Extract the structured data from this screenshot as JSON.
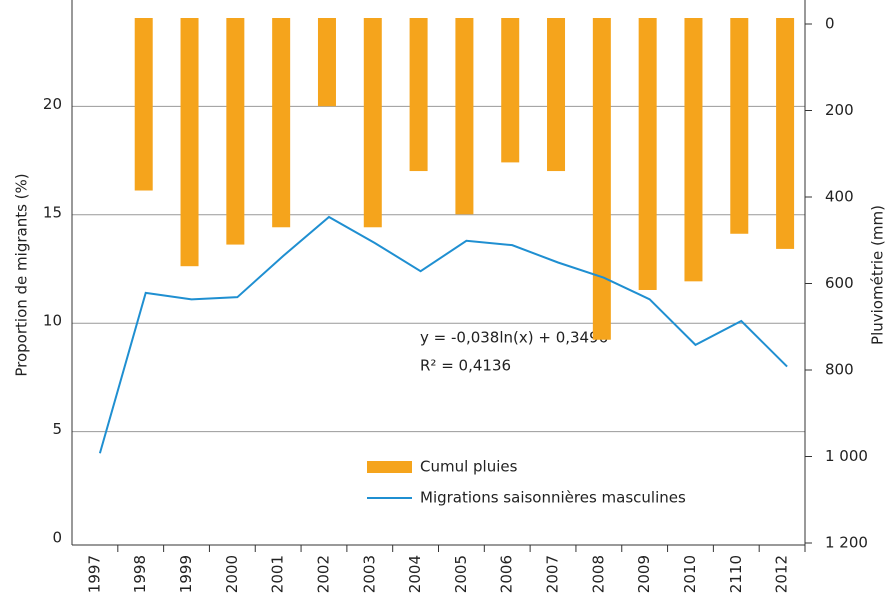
{
  "chart_data": {
    "type": "bar-line",
    "y_label": "Proportion de migrants (%)",
    "y2_label": "Pluviométrie (mm)",
    "categories": [
      "1997",
      "1998",
      "1999",
      "2000",
      "2001",
      "2002",
      "2003",
      "2004",
      "2005",
      "2006",
      "2007",
      "2008",
      "2009",
      "2010",
      "2110",
      "2012"
    ],
    "series": [
      {
        "name": "Cumul pluies",
        "type": "bar",
        "axis": "y2",
        "color": "#f5a41c",
        "values": [
          null,
          385,
          560,
          510,
          470,
          190,
          470,
          340,
          440,
          320,
          340,
          730,
          615,
          595,
          485,
          520
        ]
      },
      {
        "name": "Migrations saisonnières masculines",
        "type": "line",
        "color": "#1f8fd1",
        "values": [
          4.0,
          11.4,
          11.1,
          11.2,
          13.1,
          14.9,
          13.7,
          12.4,
          13.8,
          13.6,
          12.8,
          12.1,
          11.1,
          9.0,
          10.1,
          8.0
        ]
      }
    ],
    "ylim": [
      0,
      25
    ],
    "yticks": [
      0,
      5,
      10,
      15,
      20
    ],
    "y2lim": [
      0,
      1200
    ],
    "y2ticks": [
      0,
      200,
      400,
      600,
      800,
      {
        "value": 1000,
        "label": "1 000"
      },
      {
        "value": 1200,
        "label": "1 200"
      }
    ],
    "y2_inverted": true,
    "grid": true,
    "annotations": [
      "y = -0,038ln(x) + 0,3496",
      "R² = 0,4136"
    ]
  }
}
